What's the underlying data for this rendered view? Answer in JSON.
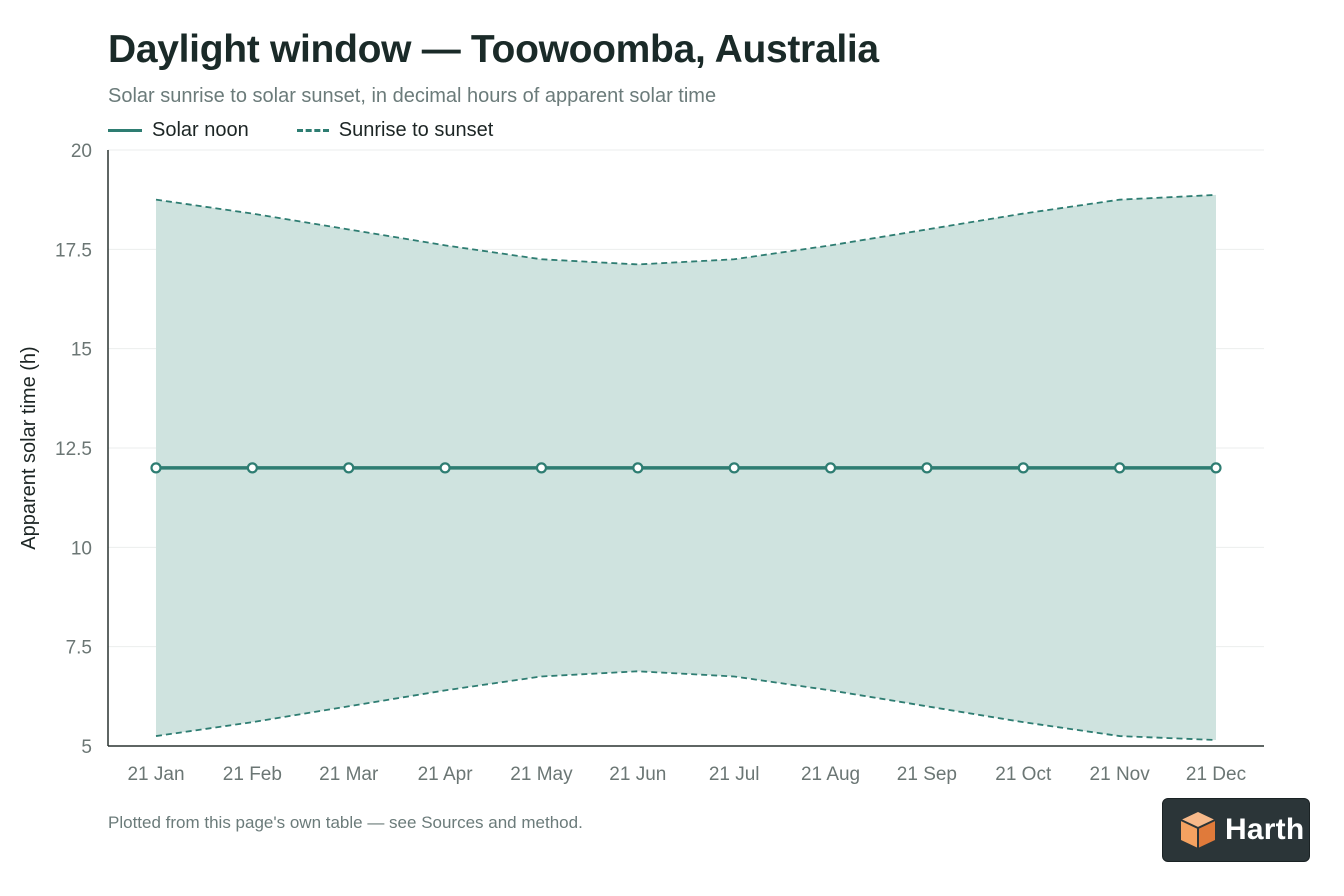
{
  "title": "Daylight window — Toowoomba, Australia",
  "subtitle": "Solar sunrise to solar sunset, in decimal hours of apparent solar time",
  "legend": {
    "noon_label": "Solar noon",
    "window_label": "Sunrise to sunset"
  },
  "note": "Plotted from this page's own table — see Sources and method.",
  "brand": {
    "name": "Harth",
    "logo_icon": "cube-icon"
  },
  "colors": {
    "accent": "#2e7d72",
    "band_fill": "#cfe3df",
    "text": "#1c2524",
    "muted": "#6b7674",
    "grid": "#ebeeed",
    "badge_bg": "#2b3538",
    "logo_orange": "#f4a261"
  },
  "chart_data": {
    "type": "area",
    "title": "Daylight window — Toowoomba, Australia",
    "subtitle": "Solar sunrise to solar sunset, in decimal hours of apparent solar time",
    "xlabel": "",
    "ylabel": "Apparent solar time (h)",
    "ylim": [
      5,
      20
    ],
    "yticks": [
      5,
      7.5,
      10,
      12.5,
      15,
      17.5,
      20
    ],
    "ytick_labels": [
      "5",
      "7.5",
      "10",
      "12.5",
      "15",
      "17.5",
      "20"
    ],
    "categories": [
      "21 Jan",
      "21 Feb",
      "21 Mar",
      "21 Apr",
      "21 May",
      "21 Jun",
      "21 Jul",
      "21 Aug",
      "21 Sep",
      "21 Oct",
      "21 Nov",
      "21 Dec"
    ],
    "grid": true,
    "legend_position": "top-left",
    "series": [
      {
        "name": "Solar noon",
        "style": "solid-with-markers",
        "values": [
          12,
          12,
          12,
          12,
          12,
          12,
          12,
          12,
          12,
          12,
          12,
          12
        ]
      },
      {
        "name": "Sunrise to sunset",
        "style": "dashed-band",
        "sunrise": [
          5.25,
          5.6,
          6.0,
          6.4,
          6.75,
          6.88,
          6.75,
          6.4,
          6.0,
          5.6,
          5.25,
          5.15
        ],
        "sunset": [
          18.75,
          18.4,
          18.0,
          17.6,
          17.25,
          17.12,
          17.25,
          17.6,
          18.0,
          18.4,
          18.75,
          18.87
        ]
      }
    ]
  }
}
